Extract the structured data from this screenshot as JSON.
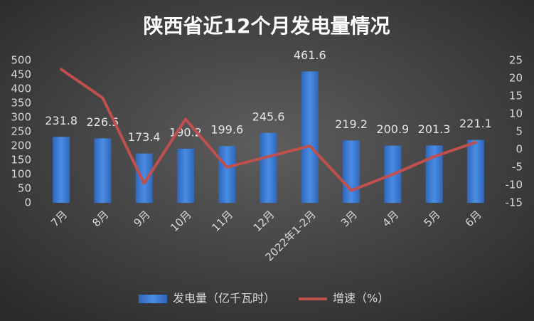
{
  "chart_data": {
    "type": "bar",
    "title": "陕西省近12个月发电量情况",
    "categories": [
      "7月",
      "8月",
      "9月",
      "10月",
      "11月",
      "12月",
      "2022年1-2月",
      "3月",
      "4月",
      "5月",
      "6月"
    ],
    "series": [
      {
        "name": "发电量（亿千瓦时）",
        "type": "bar",
        "color": "#3b7dd8",
        "values": [
          231.8,
          226.5,
          173.4,
          190.2,
          199.6,
          245.6,
          461.6,
          219.2,
          200.9,
          201.3,
          221.1
        ]
      },
      {
        "name": "增速（%）",
        "type": "line",
        "color": "#c0504d",
        "axis": "y2",
        "values": [
          22.5,
          14.5,
          -9.5,
          8.5,
          -5,
          -2,
          1,
          -11.5,
          -7,
          -2,
          2
        ]
      }
    ],
    "ylim": [
      0,
      500
    ],
    "yticks": [
      0,
      50,
      100,
      150,
      200,
      250,
      300,
      350,
      400,
      450,
      500
    ],
    "y2lim": [
      -15,
      25
    ],
    "y2ticks": [
      -15,
      -10,
      -5,
      0,
      5,
      10,
      15,
      20,
      25
    ],
    "grid": false,
    "legend": "bottom"
  }
}
